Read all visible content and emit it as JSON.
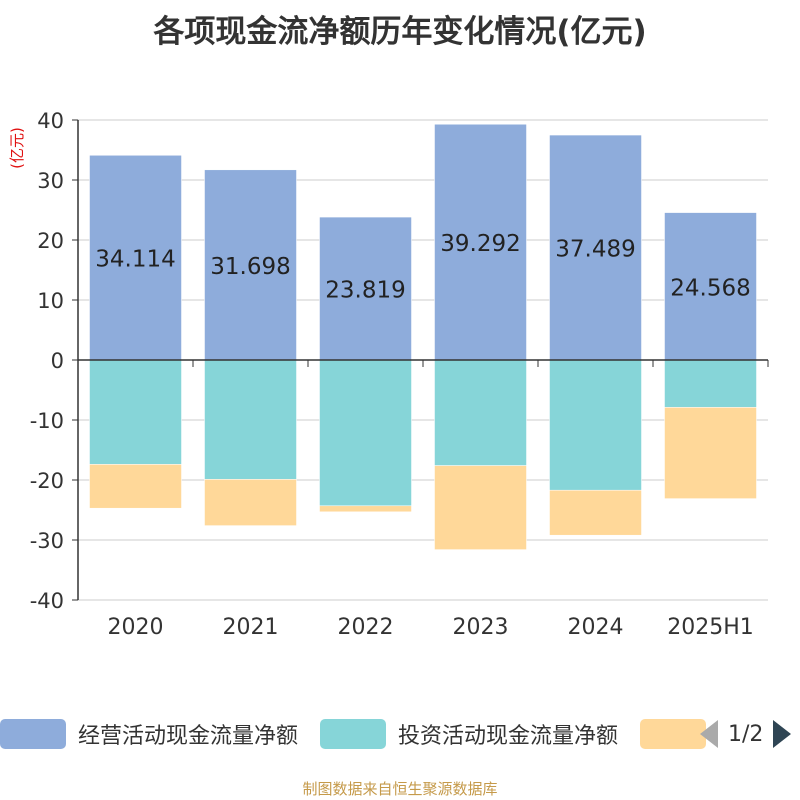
{
  "title": "各项现金流净额历年变化情况(亿元)",
  "source": "制图数据来自恒生聚源数据库",
  "legend": {
    "items": [
      {
        "label": "经营活动现金流量净额",
        "color": "#8eacdb"
      },
      {
        "label": "投资活动现金流量净额",
        "color": "#86d5d8"
      },
      {
        "label": "",
        "color": "#ffd899"
      }
    ],
    "page": "1/2"
  },
  "chart_data": {
    "type": "bar",
    "stacked": true,
    "title": "各项现金流净额历年变化情况(亿元)",
    "ylabel": "(亿元)",
    "ylim": [
      -40,
      40
    ],
    "yticks": [
      40,
      30,
      20,
      10,
      0,
      -10,
      -20,
      -30,
      -40
    ],
    "grid": true,
    "legend_position": "bottom",
    "categories": [
      "2020",
      "2021",
      "2022",
      "2023",
      "2024",
      "2025H1"
    ],
    "series": [
      {
        "name": "经营活动现金流量净额",
        "color": "#8eacdb",
        "values": [
          34.114,
          31.698,
          23.819,
          39.292,
          37.489,
          24.568
        ],
        "labels": [
          "34.114",
          "31.698",
          "23.819",
          "39.292",
          "37.489",
          "24.568"
        ]
      },
      {
        "name": "投资活动现金流量净额",
        "color": "#86d5d8",
        "values": [
          -17.4,
          -19.9,
          -24.3,
          -17.6,
          -21.7,
          -7.9
        ]
      },
      {
        "color": "#ffd899",
        "values": [
          -7.3,
          -7.7,
          -1.0,
          -14.0,
          -7.5,
          -15.2
        ]
      }
    ]
  }
}
